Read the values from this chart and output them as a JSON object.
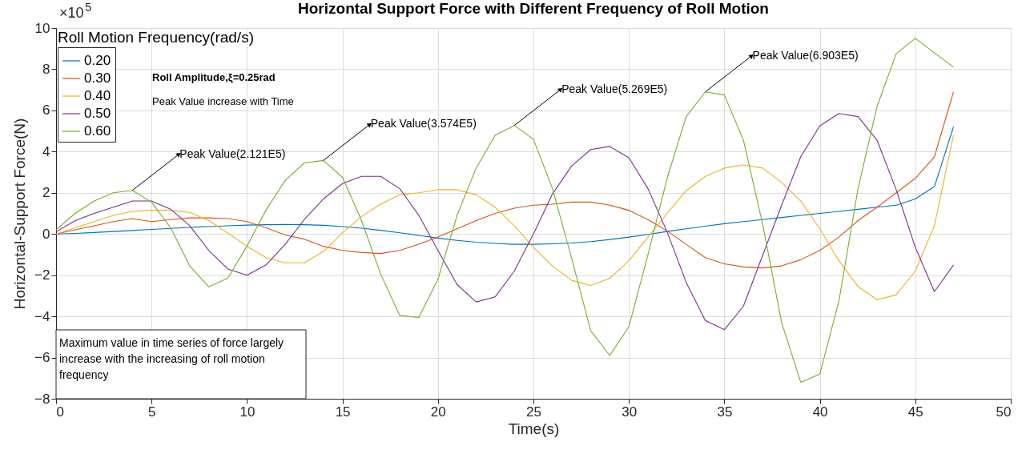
{
  "chart_data": {
    "type": "line",
    "title": "Horizontal Support Force with Different Frequency of Roll Motion",
    "xlabel": "Time(s)",
    "ylabel": "Horizontal-Support Force(N)",
    "legend_title": "Roll Motion Frequency(rad/s)",
    "x": [
      0,
      1,
      2,
      3,
      4,
      5,
      6,
      7,
      8,
      9,
      10,
      11,
      12,
      13,
      14,
      15,
      16,
      17,
      18,
      19,
      20,
      21,
      22,
      23,
      24,
      25,
      26,
      27,
      28,
      29,
      30,
      31,
      32,
      33,
      34,
      35,
      36,
      37,
      38,
      39,
      40,
      41,
      42,
      43,
      44,
      45,
      46,
      47
    ],
    "series": [
      {
        "name": "0.20",
        "color": "#0072bd",
        "values": [
          0,
          0.03,
          0.07,
          0.12,
          0.17,
          0.22,
          0.27,
          0.32,
          0.36,
          0.4,
          0.43,
          0.45,
          0.46,
          0.45,
          0.42,
          0.36,
          0.28,
          0.18,
          0.06,
          -0.07,
          -0.2,
          -0.31,
          -0.4,
          -0.46,
          -0.5,
          -0.5,
          -0.48,
          -0.44,
          -0.37,
          -0.27,
          -0.15,
          -0.02,
          0.12,
          0.25,
          0.38,
          0.5,
          0.6,
          0.7,
          0.8,
          0.9,
          1.0,
          1.1,
          1.2,
          1.3,
          1.4,
          1.7,
          2.3,
          5.2
        ]
      },
      {
        "name": "0.30",
        "color": "#d95319",
        "values": [
          0,
          0.2,
          0.4,
          0.6,
          0.75,
          0.6,
          0.7,
          0.78,
          0.78,
          0.75,
          0.6,
          0.3,
          -0.05,
          -0.25,
          -0.6,
          -0.8,
          -0.9,
          -0.95,
          -0.8,
          -0.5,
          -0.15,
          0.25,
          0.65,
          1.0,
          1.25,
          1.4,
          1.45,
          1.55,
          1.55,
          1.4,
          1.15,
          0.7,
          0.15,
          -0.5,
          -1.15,
          -1.45,
          -1.6,
          -1.65,
          -1.55,
          -1.25,
          -0.8,
          -0.15,
          0.65,
          1.3,
          2.0,
          2.7,
          3.75,
          6.9
        ]
      },
      {
        "name": "0.40",
        "color": "#edb120",
        "values": [
          0,
          0.3,
          0.6,
          0.9,
          1.1,
          1.15,
          1.15,
          1.05,
          0.65,
          0.05,
          -0.6,
          -1.15,
          -1.4,
          -1.4,
          -0.85,
          0.05,
          0.85,
          1.45,
          1.9,
          2.0,
          2.15,
          2.15,
          1.9,
          1.3,
          0.4,
          -0.65,
          -1.55,
          -2.25,
          -2.5,
          -2.15,
          -1.3,
          -0.15,
          1.0,
          2.1,
          2.8,
          3.2,
          3.35,
          3.2,
          2.5,
          1.6,
          0.25,
          -1.3,
          -2.55,
          -3.2,
          -2.95,
          -1.8,
          0.4,
          4.8
        ]
      },
      {
        "name": "0.50",
        "color": "#7e2f8e",
        "values": [
          0.1,
          0.65,
          1.0,
          1.3,
          1.6,
          1.6,
          1.2,
          0.4,
          -0.8,
          -1.7,
          -2.0,
          -1.5,
          -0.5,
          0.7,
          1.7,
          2.45,
          2.8,
          2.8,
          2.2,
          0.9,
          -0.8,
          -2.45,
          -3.3,
          -3.05,
          -1.8,
          0,
          1.95,
          3.3,
          4.1,
          4.25,
          3.7,
          2.2,
          0.1,
          -2.35,
          -4.2,
          -4.65,
          -3.5,
          -1.05,
          1.4,
          3.75,
          5.25,
          5.85,
          5.7,
          4.55,
          2.15,
          -0.65,
          -2.8,
          -1.5
        ]
      },
      {
        "name": "0.60",
        "color": "#77ac30",
        "values": [
          0.2,
          1.0,
          1.6,
          2.0,
          2.12,
          1.55,
          0.3,
          -1.55,
          -2.57,
          -2.14,
          -0.58,
          1.17,
          2.6,
          3.45,
          3.57,
          2.75,
          0.65,
          -1.95,
          -3.96,
          -4.05,
          -2.2,
          0.9,
          3.2,
          4.8,
          5.27,
          4.6,
          2.2,
          -1.17,
          -4.7,
          -5.9,
          -4.5,
          -1.0,
          2.7,
          5.7,
          6.9,
          6.75,
          4.55,
          0.5,
          -4.3,
          -7.2,
          -6.8,
          -3.25,
          2.2,
          6.2,
          8.75,
          9.5,
          8.8,
          8.1
        ]
      }
    ],
    "xlim": [
      0,
      50
    ],
    "xticks": [
      0,
      5,
      10,
      15,
      20,
      25,
      30,
      35,
      40,
      45,
      50
    ],
    "ylim": [
      -8,
      10
    ],
    "yticks": [
      -8,
      -6,
      -4,
      -2,
      0,
      2,
      4,
      6,
      8,
      10
    ],
    "grid": true,
    "legend": "top left",
    "line_style": "solid",
    "marker": "none",
    "annotations": [
      "×10$^{5}$",
      "Roll Amplitude,ξ=0.25rad",
      "Peak Value increase with Time",
      "Maximum value in time series of force largely increase with the increasing of roll motion frequency",
      {
        "text": "Peak Value(2.121E5)",
        "x": 4,
        "y": 2.12
      },
      {
        "text": "Peak Value(3.574E5)",
        "x": 14,
        "y": 3.57
      },
      {
        "text": "Peak Value(5.269E5)",
        "x": 24,
        "y": 5.27
      },
      {
        "text": "Peak Value(6.903E5)",
        "x": 34,
        "y": 6.9
      }
    ]
  }
}
